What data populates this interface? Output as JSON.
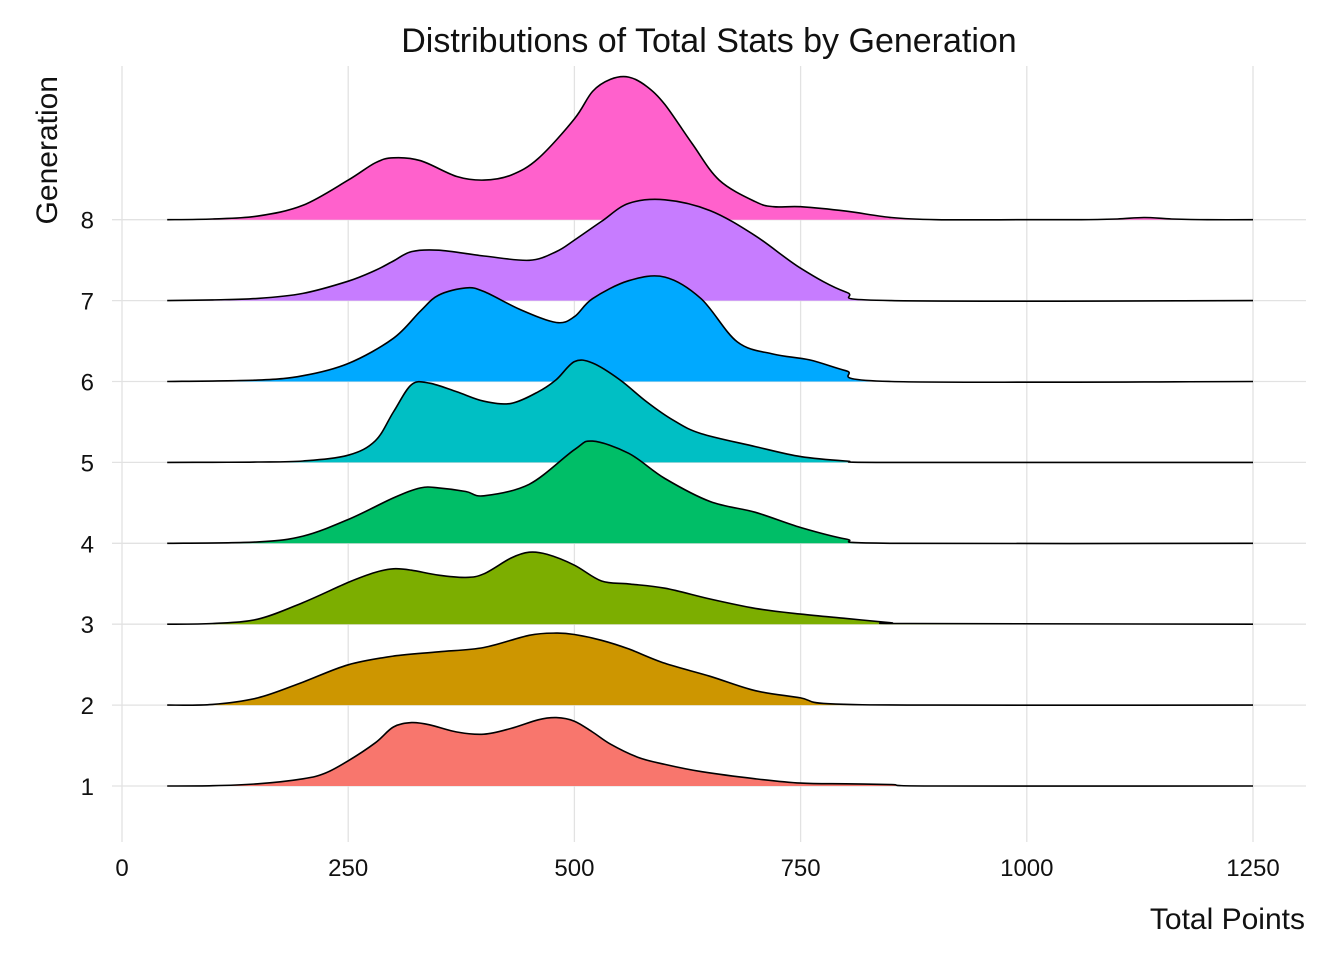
{
  "chart_data": {
    "type": "ridgeline",
    "title": "Distributions of Total Stats by Generation",
    "xlabel": "Total Points",
    "ylabel": "Generation",
    "xlim": [
      0,
      1300
    ],
    "x_ticks": [
      0,
      250,
      500,
      750,
      1000,
      1250
    ],
    "y_categories": [
      "1",
      "2",
      "3",
      "4",
      "5",
      "6",
      "7",
      "8"
    ],
    "grid": true,
    "legend": "none",
    "series": [
      {
        "name": "1",
        "color": "#F8766D",
        "x": [
          50,
          100,
          150,
          200,
          225,
          250,
          280,
          300,
          320,
          340,
          370,
          400,
          430,
          460,
          480,
          500,
          520,
          540,
          570,
          600,
          640,
          700,
          750,
          800,
          850,
          900,
          1250
        ],
        "y": [
          0,
          0.004,
          0.03,
          0.1,
          0.18,
          0.35,
          0.6,
          0.82,
          0.88,
          0.85,
          0.75,
          0.72,
          0.8,
          0.92,
          0.95,
          0.9,
          0.75,
          0.58,
          0.4,
          0.3,
          0.2,
          0.1,
          0.04,
          0.03,
          0.02,
          0,
          0
        ]
      },
      {
        "name": "2",
        "color": "#CD9600",
        "x": [
          50,
          100,
          150,
          200,
          250,
          300,
          350,
          400,
          450,
          480,
          500,
          530,
          560,
          600,
          650,
          700,
          750,
          780,
          900,
          1250
        ],
        "y": [
          0,
          0.01,
          0.1,
          0.32,
          0.56,
          0.68,
          0.74,
          0.8,
          0.97,
          1.0,
          0.98,
          0.9,
          0.78,
          0.58,
          0.4,
          0.2,
          0.1,
          0.02,
          0,
          0
        ]
      },
      {
        "name": "3",
        "color": "#7CAE00",
        "x": [
          50,
          100,
          150,
          200,
          250,
          280,
          300,
          320,
          350,
          380,
          400,
          430,
          450,
          470,
          500,
          530,
          560,
          600,
          650,
          700,
          750,
          800,
          850,
          870,
          1250
        ],
        "y": [
          0,
          0.01,
          0.07,
          0.3,
          0.58,
          0.72,
          0.77,
          0.75,
          0.68,
          0.65,
          0.7,
          0.92,
          1.0,
          0.97,
          0.82,
          0.6,
          0.56,
          0.5,
          0.35,
          0.22,
          0.14,
          0.08,
          0.02,
          0.01,
          0
        ]
      },
      {
        "name": "4",
        "color": "#00BE67",
        "x": [
          50,
          150,
          200,
          250,
          300,
          330,
          350,
          380,
          400,
          450,
          500,
          520,
          560,
          600,
          650,
          700,
          750,
          800,
          850,
          1250
        ],
        "y": [
          0,
          0.02,
          0.1,
          0.33,
          0.63,
          0.77,
          0.77,
          0.72,
          0.66,
          0.82,
          1.3,
          1.42,
          1.25,
          0.9,
          0.58,
          0.43,
          0.22,
          0.06,
          0,
          0
        ]
      },
      {
        "name": "5",
        "color": "#00BFC4",
        "x": [
          50,
          100,
          150,
          200,
          250,
          280,
          300,
          320,
          340,
          370,
          400,
          430,
          460,
          480,
          500,
          520,
          550,
          580,
          610,
          640,
          700,
          750,
          800,
          850,
          1250
        ],
        "y": [
          0,
          0.002,
          0.005,
          0.02,
          0.1,
          0.3,
          0.7,
          1.08,
          1.1,
          0.98,
          0.85,
          0.82,
          0.98,
          1.15,
          1.4,
          1.38,
          1.15,
          0.84,
          0.58,
          0.4,
          0.22,
          0.08,
          0.02,
          0,
          0
        ]
      },
      {
        "name": "6",
        "color": "#00A9FF",
        "x": [
          50,
          150,
          200,
          250,
          300,
          330,
          350,
          380,
          400,
          440,
          480,
          500,
          520,
          560,
          600,
          640,
          680,
          720,
          760,
          800,
          850,
          1250
        ],
        "y": [
          0,
          0.02,
          0.08,
          0.25,
          0.6,
          0.98,
          1.2,
          1.3,
          1.25,
          1.0,
          0.82,
          0.9,
          1.15,
          1.4,
          1.45,
          1.15,
          0.55,
          0.38,
          0.3,
          0.15,
          0,
          0
        ]
      },
      {
        "name": "7",
        "color": "#C77CFF",
        "x": [
          50,
          100,
          150,
          200,
          250,
          280,
          300,
          320,
          350,
          400,
          450,
          480,
          500,
          530,
          560,
          600,
          650,
          700,
          750,
          800,
          850,
          1250
        ],
        "y": [
          0,
          0.01,
          0.03,
          0.1,
          0.27,
          0.42,
          0.55,
          0.68,
          0.7,
          0.62,
          0.56,
          0.68,
          0.84,
          1.1,
          1.35,
          1.4,
          1.25,
          0.9,
          0.45,
          0.12,
          0,
          0
        ]
      },
      {
        "name": "8",
        "color": "#FF61CC",
        "x": [
          50,
          100,
          150,
          200,
          250,
          280,
          300,
          330,
          370,
          400,
          430,
          460,
          500,
          520,
          540,
          560,
          580,
          600,
          630,
          660,
          700,
          720,
          750,
          800,
          850,
          900,
          1000,
          1060,
          1100,
          1130,
          1160,
          1200,
          1250
        ],
        "y": [
          0,
          0.01,
          0.05,
          0.2,
          0.55,
          0.79,
          0.86,
          0.82,
          0.6,
          0.55,
          0.62,
          0.85,
          1.4,
          1.78,
          1.95,
          1.98,
          1.85,
          1.6,
          1.06,
          0.55,
          0.25,
          0.18,
          0.18,
          0.12,
          0.03,
          0,
          0,
          0,
          0.01,
          0.03,
          0.01,
          0,
          0
        ]
      }
    ]
  }
}
